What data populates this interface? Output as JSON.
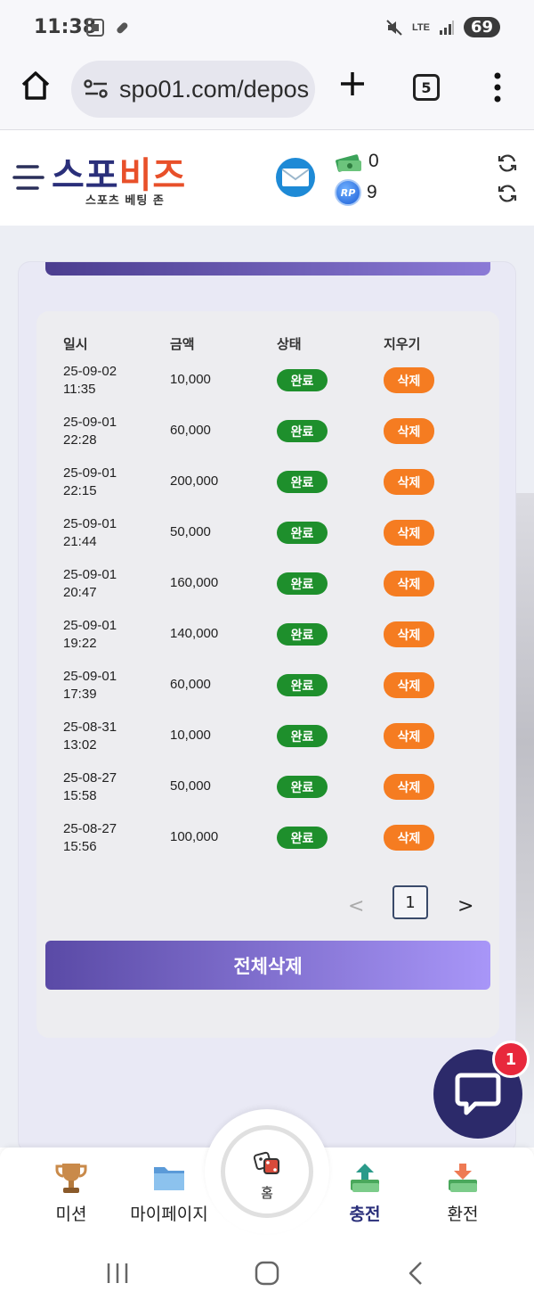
{
  "status_bar": {
    "time": "11:38",
    "battery": "69",
    "network": "LTE"
  },
  "browser": {
    "url": "spo01.com/depos",
    "tab_count": "5"
  },
  "site": {
    "logo_part1": "스포",
    "logo_part2": "비즈",
    "logo_sub": "스포츠 베팅 존",
    "money": "0",
    "points": "9",
    "points_badge": "RP"
  },
  "table": {
    "headers": [
      "일시",
      "금액",
      "상태",
      "지우기"
    ],
    "rows": [
      {
        "date": "25-09-02",
        "time": "11:35",
        "amount": "10,000",
        "status": "완료",
        "action": "삭제"
      },
      {
        "date": "25-09-01",
        "time": "22:28",
        "amount": "60,000",
        "status": "완료",
        "action": "삭제"
      },
      {
        "date": "25-09-01",
        "time": "22:15",
        "amount": "200,000",
        "status": "완료",
        "action": "삭제"
      },
      {
        "date": "25-09-01",
        "time": "21:44",
        "amount": "50,000",
        "status": "완료",
        "action": "삭제"
      },
      {
        "date": "25-09-01",
        "time": "20:47",
        "amount": "160,000",
        "status": "완료",
        "action": "삭제"
      },
      {
        "date": "25-09-01",
        "time": "19:22",
        "amount": "140,000",
        "status": "완료",
        "action": "삭제"
      },
      {
        "date": "25-09-01",
        "time": "17:39",
        "amount": "60,000",
        "status": "완료",
        "action": "삭제"
      },
      {
        "date": "25-08-31",
        "time": "13:02",
        "amount": "10,000",
        "status": "완료",
        "action": "삭제"
      },
      {
        "date": "25-08-27",
        "time": "15:58",
        "amount": "50,000",
        "status": "완료",
        "action": "삭제"
      },
      {
        "date": "25-08-27",
        "time": "15:56",
        "amount": "100,000",
        "status": "완료",
        "action": "삭제"
      }
    ]
  },
  "pagination": {
    "prev": "<",
    "current": "1",
    "next": ">"
  },
  "delete_all_label": "전체삭제",
  "chat": {
    "badge": "1"
  },
  "bottom_nav": {
    "mission": "미션",
    "mypage": "마이페이지",
    "home": "홈",
    "deposit": "충전",
    "withdraw": "환전"
  },
  "colors": {
    "accent": "#2a2f7a",
    "done_badge": "#1e8f2c",
    "delete_badge": "#f57c21",
    "button_gradient_start": "#5a4aa6",
    "button_gradient_end": "#a896f8"
  }
}
